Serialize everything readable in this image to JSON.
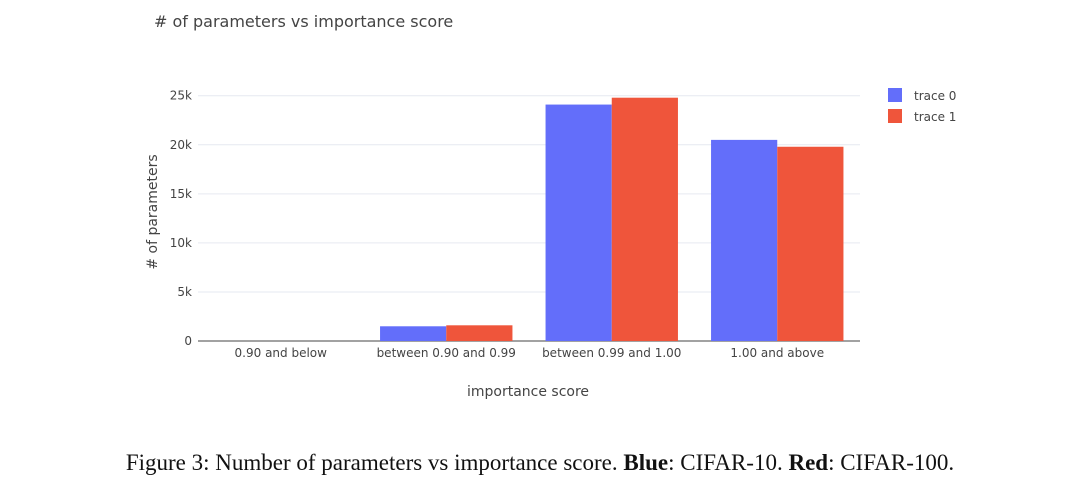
{
  "chart_data": {
    "type": "bar",
    "title": "# of parameters vs importance score",
    "xlabel": "importance score",
    "ylabel": "# of parameters",
    "categories": [
      "0.90 and below",
      "between 0.90 and 0.99",
      "between 0.99 and 1.00",
      "1.00 and above"
    ],
    "series": [
      {
        "name": "trace 0",
        "color": "#636efa",
        "values": [
          0,
          1500,
          24100,
          20500
        ]
      },
      {
        "name": "trace 1",
        "color": "#ef553b",
        "values": [
          0,
          1600,
          24800,
          19800
        ]
      }
    ],
    "ylim": [
      0,
      26400
    ],
    "yticks": [
      0,
      5000,
      10000,
      15000,
      20000,
      25000
    ],
    "ytick_labels": [
      "0",
      "5k",
      "10k",
      "15k",
      "20k",
      "25k"
    ],
    "grid": true,
    "legend_position": "top-right"
  },
  "caption": {
    "prefix": "Figure 3: Number of parameters vs importance score. ",
    "blue_label": "Blue",
    "blue_text": ": CIFAR-10. ",
    "red_label": "Red",
    "red_text": ": CIFAR-100."
  }
}
